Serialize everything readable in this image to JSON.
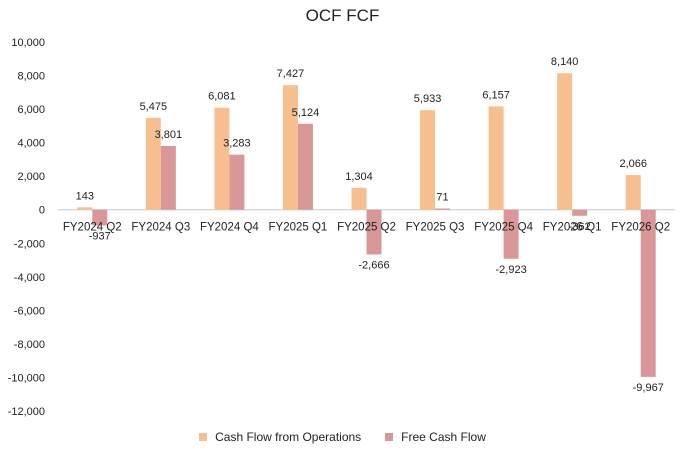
{
  "chart_data": {
    "type": "bar",
    "title": "OCF FCF",
    "categories": [
      "FY2024 Q2",
      "FY2024 Q3",
      "FY2024 Q4",
      "FY2025 Q1",
      "FY2025 Q2",
      "FY2025 Q3",
      "FY2025 Q4",
      "FY2026 Q1",
      "FY2026 Q2"
    ],
    "series": [
      {
        "name": "Cash Flow from Operations",
        "color": "#f7bf8f",
        "values": [
          143,
          5475,
          6081,
          7427,
          1304,
          5933,
          6157,
          8140,
          2066
        ],
        "labels": [
          "143",
          "5,475",
          "6,081",
          "7,427",
          "1,304",
          "5,933",
          "6,157",
          "8,140",
          "2,066"
        ]
      },
      {
        "name": "Free Cash Flow",
        "color": "#d99797",
        "values": [
          -937,
          3801,
          3283,
          5124,
          -2666,
          71,
          -2923,
          -362,
          -9967
        ],
        "labels": [
          "-937",
          "3,801",
          "3,283",
          "5,124",
          "-2,666",
          "71",
          "-2,923",
          "-362",
          "-9,967"
        ]
      }
    ],
    "y_ticks": [
      "10,000",
      "8,000",
      "6,000",
      "4,000",
      "2,000",
      "0",
      "-2,000",
      "-4,000",
      "-6,000",
      "-8,000",
      "-10,000",
      "-12,000"
    ],
    "ylim": [
      -12000,
      10000
    ],
    "grid": false,
    "legend_position": "bottom"
  }
}
